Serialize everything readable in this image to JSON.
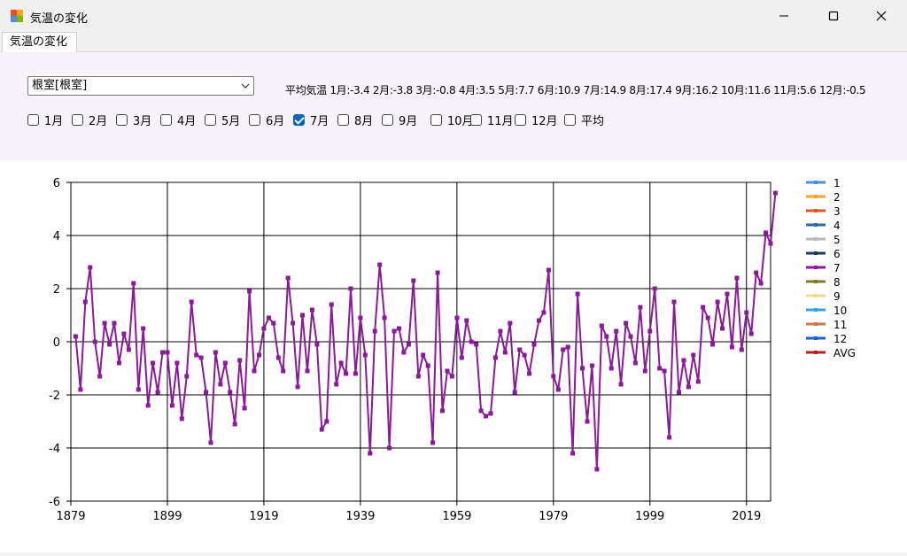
{
  "window": {
    "title": "気温の変化"
  },
  "tabs": [
    {
      "label": "気温の変化"
    }
  ],
  "station_select": {
    "value": "根室[根室]"
  },
  "avg_label": "平均気温 1月:-3.4 2月:-3.8 3月:-0.8 4月:3.5 5月:7.7 6月:10.9 7月:14.9 8月:17.4 9月:16.2 10月:11.6 11月:5.6 12月:-0.5",
  "checkboxes": [
    {
      "label": "1月",
      "checked": false
    },
    {
      "label": "2月",
      "checked": false
    },
    {
      "label": "3月",
      "checked": false
    },
    {
      "label": "4月",
      "checked": false
    },
    {
      "label": "5月",
      "checked": false
    },
    {
      "label": "6月",
      "checked": false
    },
    {
      "label": "7月",
      "checked": true
    },
    {
      "label": "8月",
      "checked": false
    },
    {
      "label": "9月",
      "checked": false
    },
    {
      "label": "10月",
      "checked": false
    },
    {
      "label": "11月",
      "checked": false
    },
    {
      "label": "12月",
      "checked": false
    },
    {
      "label": "平均",
      "checked": false
    }
  ],
  "chart_data": {
    "type": "line",
    "xlim": [
      1879,
      2024
    ],
    "ylim": [
      -6,
      6
    ],
    "x_ticks": [
      "1879",
      "1899",
      "1919",
      "1939",
      "1959",
      "1979",
      "1999",
      "2019"
    ],
    "y_ticks": [
      "6",
      "4",
      "2",
      "0",
      "-2",
      "-4",
      "-6"
    ],
    "grid": true,
    "legend_position": "right",
    "legend": [
      {
        "label": "1",
        "color": "#4a90e2"
      },
      {
        "label": "2",
        "color": "#f5a623"
      },
      {
        "label": "3",
        "color": "#e2531e"
      },
      {
        "label": "4",
        "color": "#2c6aa0"
      },
      {
        "label": "5",
        "color": "#b8b8b8"
      },
      {
        "label": "6",
        "color": "#1f3a5f"
      },
      {
        "label": "7",
        "color": "#8b1a9a"
      },
      {
        "label": "8",
        "color": "#7d7d1e"
      },
      {
        "label": "9",
        "color": "#f4d98a"
      },
      {
        "label": "10",
        "color": "#2fa4e7"
      },
      {
        "label": "11",
        "color": "#c97a4a"
      },
      {
        "label": "12",
        "color": "#1a5fd6"
      },
      {
        "label": "AVG",
        "color": "#b22222"
      }
    ],
    "series": [
      {
        "name": "7",
        "color": "#8b1a9a",
        "start_year": 1880,
        "values": [
          0.2,
          -1.8,
          1.5,
          2.8,
          0.0,
          -1.3,
          0.7,
          -0.1,
          0.7,
          -0.8,
          0.3,
          -0.3,
          2.2,
          -1.8,
          0.5,
          -2.4,
          -0.8,
          -1.9,
          -0.4,
          -0.4,
          -2.4,
          -0.8,
          -2.9,
          -1.3,
          1.5,
          -0.5,
          -0.6,
          -1.9,
          -3.8,
          -0.4,
          -1.6,
          -0.8,
          -1.9,
          -3.1,
          -0.7,
          -2.5,
          1.9,
          -1.1,
          -0.5,
          0.5,
          0.9,
          0.7,
          -0.6,
          -1.1,
          2.4,
          0.7,
          -1.7,
          1.0,
          -1.1,
          1.2,
          -0.1,
          -3.3,
          -3.0,
          1.4,
          -1.6,
          -0.8,
          -1.2,
          2.0,
          -1.2,
          0.9,
          -0.5,
          -4.2,
          0.4,
          2.9,
          0.9,
          -4.0,
          0.4,
          0.5,
          -0.4,
          -0.1,
          2.3,
          -1.3,
          -0.5,
          -0.9,
          -3.8,
          2.6,
          -2.6,
          -1.1,
          -1.3,
          0.9,
          -0.6,
          0.8,
          0.0,
          -0.1,
          -2.6,
          -2.8,
          -2.7,
          -0.6,
          0.4,
          -0.4,
          0.7,
          -1.9,
          -0.3,
          -0.5,
          -1.2,
          -0.1,
          0.8,
          1.1,
          2.7,
          -1.3,
          -1.8,
          -0.3,
          -0.2,
          -4.2,
          1.8,
          -1.0,
          -3.0,
          -0.9,
          -4.8,
          0.6,
          0.2,
          -1.0,
          0.4,
          -1.6,
          0.7,
          0.2,
          -0.8,
          1.3,
          -1.1,
          0.4,
          2.0,
          -1.0,
          -1.1,
          -3.6,
          1.5,
          -1.9,
          -0.7,
          -1.7,
          -0.5,
          -1.5,
          1.3,
          0.9,
          -0.1,
          1.5,
          0.5,
          1.8,
          -0.2,
          2.4,
          -0.3,
          1.1,
          0.3,
          2.6,
          2.2,
          4.1,
          3.7,
          5.6
        ]
      }
    ]
  }
}
